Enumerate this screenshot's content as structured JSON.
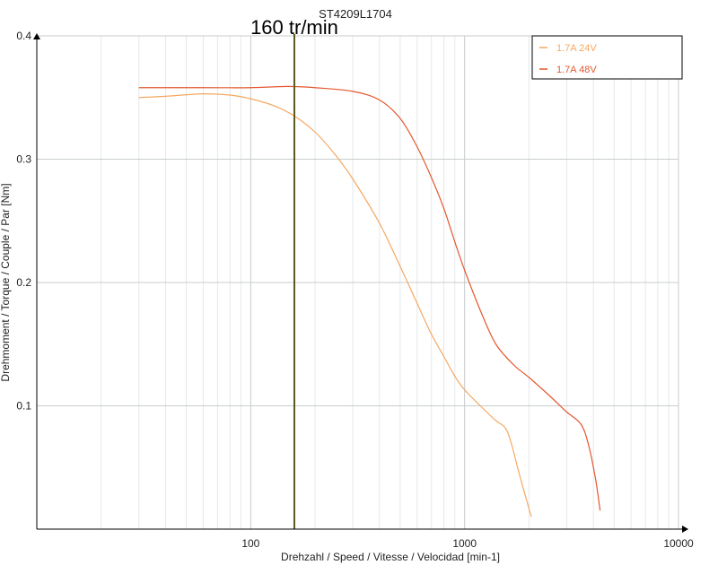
{
  "chart_data": {
    "type": "line",
    "title": "ST4209L1704",
    "xlabel": "Drehzahl / Speed / Vitesse / Velocidad [min-1]",
    "ylabel": "Drehmoment / Torque / Couple / Par [Nm]",
    "x_scale": "log",
    "xlim": [
      10,
      10000
    ],
    "ylim": [
      0,
      0.4
    ],
    "x_ticks": [
      {
        "value": 100,
        "label": "100"
      },
      {
        "value": 1000,
        "label": "1000"
      },
      {
        "value": 10000,
        "label": "10000"
      }
    ],
    "y_ticks": [
      {
        "value": 0.1,
        "label": "0.1"
      },
      {
        "value": 0.2,
        "label": "0.2"
      },
      {
        "value": 0.3,
        "label": "0.3"
      },
      {
        "value": 0.4,
        "label": "0.4"
      }
    ],
    "grid": true,
    "legend_position": "top-right",
    "marker_line": {
      "x": 160,
      "label": "160 tr/min",
      "color": "#5a5a1e"
    },
    "series": [
      {
        "name": "1.7A  24V",
        "color": "#f5a862",
        "x": [
          30,
          40,
          60,
          80,
          100,
          130,
          160,
          200,
          250,
          300,
          400,
          500,
          600,
          700,
          800,
          900,
          1000,
          1200,
          1400,
          1550,
          1650,
          1800,
          2050
        ],
        "y": [
          0.35,
          0.351,
          0.353,
          0.352,
          0.349,
          0.343,
          0.335,
          0.322,
          0.303,
          0.284,
          0.248,
          0.213,
          0.183,
          0.158,
          0.14,
          0.124,
          0.113,
          0.099,
          0.088,
          0.082,
          0.07,
          0.045,
          0.01
        ]
      },
      {
        "name": "1.7A  48V",
        "color": "#e4572e",
        "x": [
          30,
          60,
          100,
          150,
          200,
          300,
          400,
          500,
          600,
          700,
          800,
          900,
          1000,
          1200,
          1400,
          1700,
          2000,
          2500,
          3000,
          3500,
          3800,
          4100,
          4300
        ],
        "y": [
          0.358,
          0.358,
          0.358,
          0.359,
          0.358,
          0.355,
          0.348,
          0.333,
          0.31,
          0.285,
          0.26,
          0.233,
          0.21,
          0.175,
          0.15,
          0.133,
          0.123,
          0.108,
          0.095,
          0.085,
          0.068,
          0.04,
          0.015
        ]
      }
    ]
  }
}
